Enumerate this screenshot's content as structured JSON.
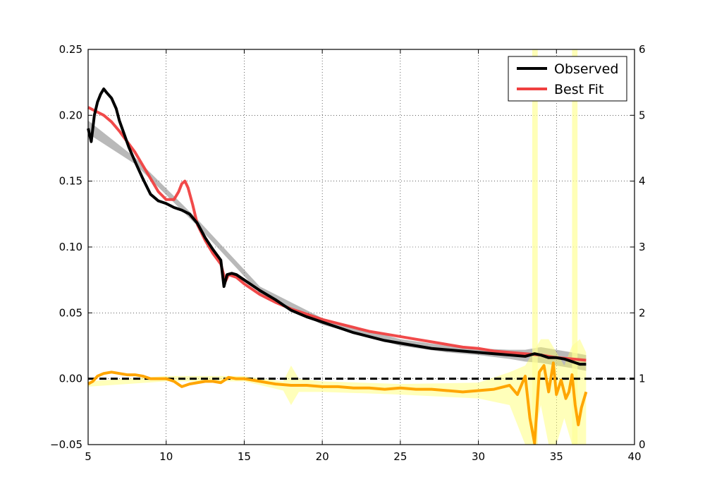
{
  "chart_data": {
    "type": "line",
    "title": "",
    "xlabel": "",
    "ylabel": "",
    "xlim": [
      5,
      40
    ],
    "ylim": [
      -0.05,
      0.25
    ],
    "y2lim": [
      0,
      6
    ],
    "grid": true,
    "grid_style": "dotted",
    "legend_position": "top-right",
    "x_ticks": [
      5,
      10,
      15,
      20,
      25,
      30,
      35,
      40
    ],
    "x_tick_labels": [
      "5",
      "10",
      "15",
      "20",
      "25",
      "30",
      "35",
      "40"
    ],
    "y_ticks": [
      -0.05,
      0.0,
      0.05,
      0.1,
      0.15,
      0.2,
      0.25
    ],
    "y_tick_labels": [
      "−0.05",
      "0.00",
      "0.05",
      "0.10",
      "0.15",
      "0.20",
      "0.25"
    ],
    "y2_ticks": [
      0,
      1,
      2,
      3,
      4,
      5,
      6
    ],
    "y2_tick_labels": [
      "0",
      "1",
      "2",
      "3",
      "4",
      "5",
      "6"
    ],
    "zero_line": 0.0,
    "series": [
      {
        "name": "Observed",
        "axis": "left",
        "color": "#000000",
        "x": [
          5.0,
          5.2,
          5.4,
          5.6,
          5.8,
          6.0,
          6.2,
          6.5,
          6.8,
          7.0,
          7.3,
          7.6,
          8.0,
          8.5,
          9.0,
          9.5,
          10.0,
          10.5,
          11.0,
          11.5,
          12.0,
          12.5,
          13.0,
          13.5,
          13.7,
          13.9,
          14.2,
          14.5,
          15.0,
          16.0,
          17.0,
          18.0,
          19.0,
          20.0,
          21.0,
          22.0,
          23.0,
          24.0,
          25.0,
          26.0,
          27.0,
          28.0,
          29.0,
          30.0,
          31.0,
          32.0,
          33.0,
          33.6,
          34.0,
          34.5,
          35.0,
          35.5,
          36.0,
          36.5,
          36.9
        ],
        "y": [
          0.19,
          0.18,
          0.2,
          0.21,
          0.216,
          0.22,
          0.217,
          0.213,
          0.205,
          0.196,
          0.186,
          0.176,
          0.165,
          0.152,
          0.14,
          0.135,
          0.133,
          0.13,
          0.128,
          0.125,
          0.118,
          0.107,
          0.098,
          0.09,
          0.07,
          0.079,
          0.08,
          0.079,
          0.075,
          0.067,
          0.06,
          0.052,
          0.047,
          0.043,
          0.039,
          0.035,
          0.032,
          0.029,
          0.027,
          0.025,
          0.023,
          0.022,
          0.021,
          0.02,
          0.019,
          0.018,
          0.017,
          0.019,
          0.018,
          0.016,
          0.016,
          0.015,
          0.013,
          0.011,
          0.011
        ]
      },
      {
        "name": "Best Fit",
        "axis": "left",
        "color": "#f04040",
        "x": [
          5.0,
          5.5,
          6.0,
          6.5,
          7.0,
          7.5,
          8.0,
          8.5,
          9.0,
          9.5,
          10.0,
          10.5,
          10.8,
          11.0,
          11.2,
          11.4,
          11.7,
          12.0,
          12.5,
          13.0,
          13.5,
          13.8,
          14.0,
          14.5,
          15.0,
          16.0,
          17.0,
          18.0,
          19.0,
          20.0,
          21.0,
          22.0,
          23.0,
          24.0,
          25.0,
          26.0,
          27.0,
          28.0,
          29.0,
          30.0,
          31.0,
          32.0,
          33.0,
          34.0,
          35.0,
          36.0,
          36.9
        ],
        "y": [
          0.206,
          0.203,
          0.2,
          0.195,
          0.188,
          0.18,
          0.172,
          0.162,
          0.152,
          0.142,
          0.136,
          0.136,
          0.142,
          0.148,
          0.15,
          0.145,
          0.132,
          0.117,
          0.105,
          0.095,
          0.087,
          0.074,
          0.079,
          0.077,
          0.072,
          0.064,
          0.058,
          0.053,
          0.049,
          0.045,
          0.042,
          0.039,
          0.036,
          0.034,
          0.032,
          0.03,
          0.028,
          0.026,
          0.024,
          0.023,
          0.021,
          0.02,
          0.019,
          0.018,
          0.016,
          0.015,
          0.014
        ]
      },
      {
        "name": "",
        "axis": "left",
        "color": "#ffa500",
        "x": [
          5.0,
          5.3,
          5.6,
          6.0,
          6.5,
          7.0,
          7.5,
          8.0,
          8.5,
          9.0,
          9.5,
          10.0,
          10.5,
          11.0,
          11.5,
          12.0,
          12.5,
          13.0,
          13.5,
          14.0,
          14.5,
          15.0,
          16.0,
          17.0,
          18.0,
          19.0,
          20.0,
          21.0,
          22.0,
          23.0,
          24.0,
          25.0,
          26.0,
          27.0,
          28.0,
          29.0,
          30.0,
          31.0,
          32.0,
          32.5,
          33.0,
          33.3,
          33.6,
          33.9,
          34.2,
          34.5,
          34.8,
          35.0,
          35.3,
          35.6,
          35.8,
          36.0,
          36.2,
          36.4,
          36.6,
          36.9
        ],
        "y": [
          -0.004,
          -0.002,
          0.002,
          0.004,
          0.005,
          0.004,
          0.003,
          0.003,
          0.002,
          0.0,
          0.0,
          0.0,
          -0.002,
          -0.006,
          -0.004,
          -0.003,
          -0.002,
          -0.002,
          -0.003,
          0.001,
          0.0,
          0.0,
          -0.002,
          -0.004,
          -0.005,
          -0.005,
          -0.006,
          -0.006,
          -0.007,
          -0.007,
          -0.008,
          -0.007,
          -0.008,
          -0.008,
          -0.009,
          -0.01,
          -0.009,
          -0.008,
          -0.005,
          -0.012,
          0.002,
          -0.03,
          -0.049,
          0.005,
          0.01,
          -0.01,
          0.012,
          -0.012,
          -0.001,
          -0.015,
          -0.01,
          0.003,
          -0.02,
          -0.035,
          -0.022,
          -0.01
        ]
      }
    ],
    "bands": [
      {
        "x": [
          5.0,
          8.0,
          12.0,
          16.0,
          20.0,
          25.0,
          28.0,
          30.0,
          32.0,
          33.0,
          34.0,
          35.0,
          36.0,
          36.9
        ],
        "low": [
          0.186,
          0.163,
          0.116,
          0.065,
          0.041,
          0.025,
          0.02,
          0.018,
          0.015,
          0.013,
          0.012,
          0.01,
          0.008,
          0.006
        ],
        "high": [
          0.196,
          0.168,
          0.121,
          0.07,
          0.046,
          0.03,
          0.025,
          0.023,
          0.022,
          0.022,
          0.024,
          0.022,
          0.02,
          0.018
        ],
        "color": "#808080"
      },
      {
        "x": [
          5.0,
          10.0,
          15.0,
          17.5,
          18.0,
          18.5,
          20.0,
          25.0,
          30.0,
          32.0,
          33.0,
          33.5,
          34.0,
          34.5,
          35.0,
          35.5,
          36.0,
          36.5,
          36.9
        ],
        "low": [
          -0.006,
          -0.002,
          -0.002,
          -0.009,
          -0.02,
          -0.01,
          -0.01,
          -0.012,
          -0.015,
          -0.02,
          -0.05,
          -0.05,
          -0.02,
          -0.05,
          -0.05,
          -0.03,
          -0.05,
          -0.05,
          -0.05
        ],
        "high": [
          -0.002,
          0.002,
          0.002,
          -0.002,
          0.01,
          0.0,
          -0.002,
          -0.004,
          -0.003,
          0.005,
          0.01,
          0.02,
          0.03,
          0.03,
          0.02,
          0.01,
          0.025,
          0.03,
          0.02
        ],
        "color": "#ffff66"
      }
    ],
    "spikes": [
      {
        "x_start": 33.45,
        "x_end": 33.8,
        "axis": "right",
        "top": 6,
        "color": "#ffff99"
      },
      {
        "x_start": 36.0,
        "x_end": 36.35,
        "axis": "right",
        "top": 6,
        "color": "#ffff99"
      }
    ],
    "legend": [
      {
        "label": "Observed",
        "color": "#000000"
      },
      {
        "label": "Best Fit",
        "color": "#f04040"
      }
    ]
  }
}
